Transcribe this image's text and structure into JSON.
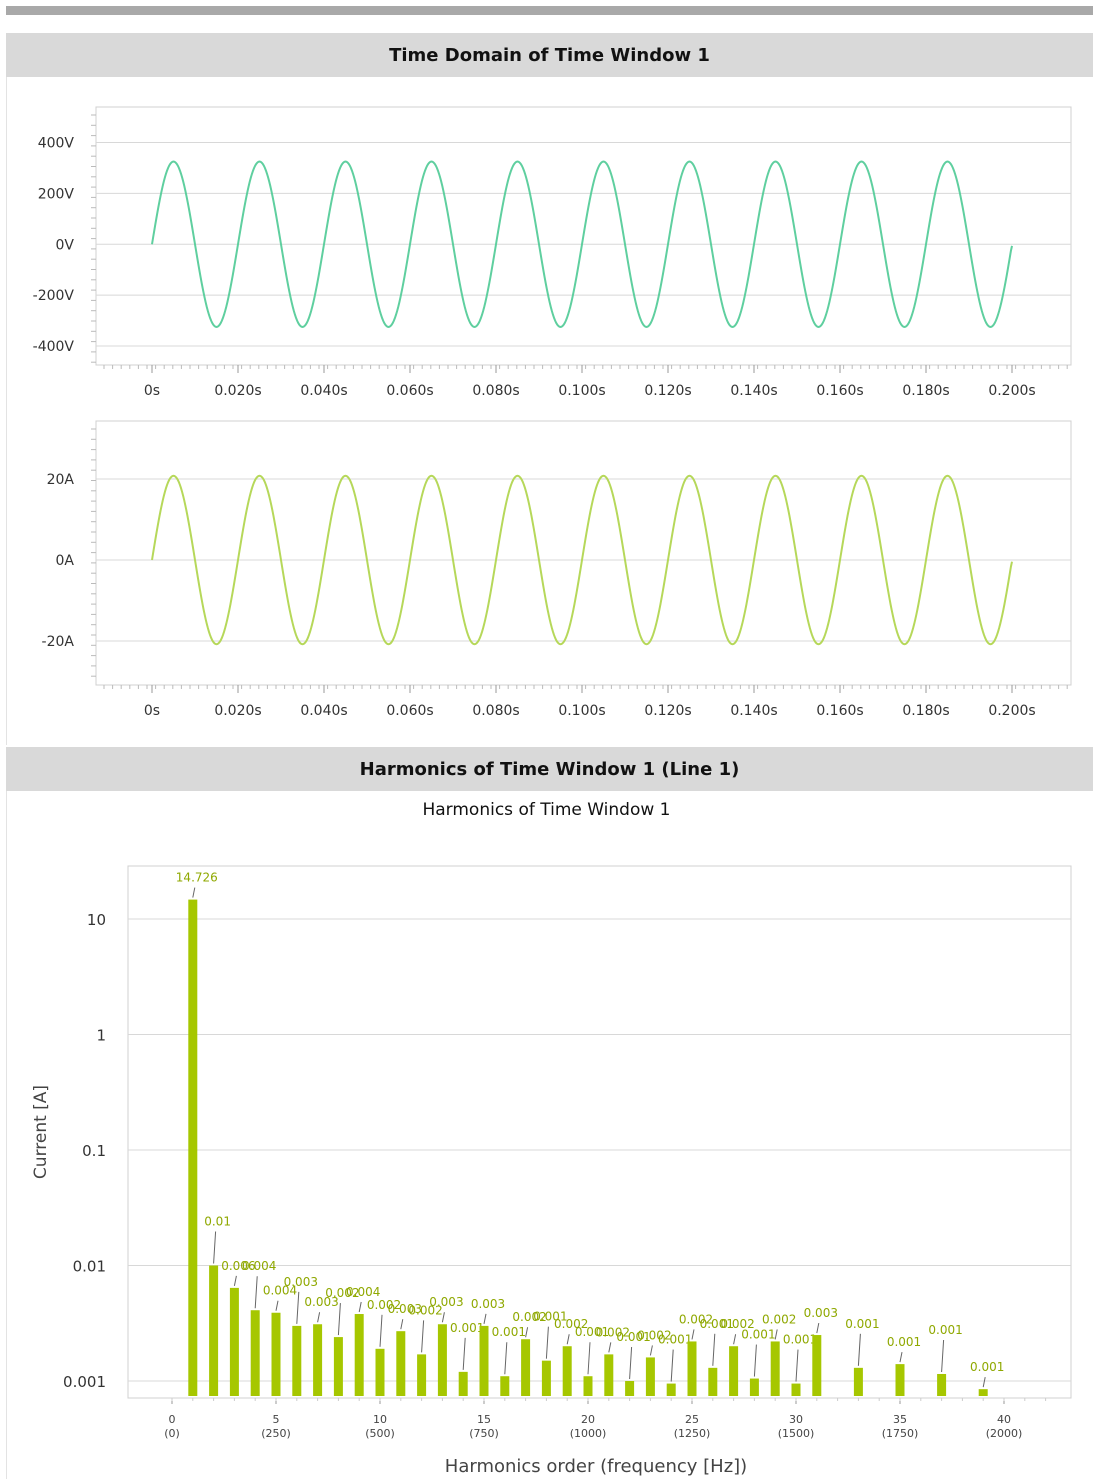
{
  "header_time": "Time Domain of Time Window 1",
  "header_harm": "Harmonics of Time Window 1 (Line 1)",
  "colors": {
    "voltage": "#5fcf9f",
    "current": "#b6d85a",
    "bar": "#a6c700",
    "label": "#8fa800",
    "grid": "#d8d8d8",
    "header_bg": "#d9d9d9"
  },
  "chart_data": [
    {
      "type": "line",
      "signal": "voltage",
      "x_ticks": [
        "0s",
        "0.020s",
        "0.040s",
        "0.060s",
        "0.080s",
        "0.100s",
        "0.120s",
        "0.140s",
        "0.160s",
        "0.180s",
        "0.200s"
      ],
      "y_ticks": [
        "400V",
        "200V",
        "0V",
        "-200V",
        "-400V"
      ],
      "xlim": [
        0,
        0.2
      ],
      "ylim": [
        -400,
        400
      ],
      "waveform": {
        "shape": "sine",
        "amplitude": 325,
        "frequency_hz": 50,
        "t_start": 0,
        "t_end": 0.2
      },
      "grid": true
    },
    {
      "type": "line",
      "signal": "current",
      "x_ticks": [
        "0s",
        "0.020s",
        "0.040s",
        "0.060s",
        "0.080s",
        "0.100s",
        "0.120s",
        "0.140s",
        "0.160s",
        "0.180s",
        "0.200s"
      ],
      "y_ticks": [
        "20A",
        "0A",
        "-20A"
      ],
      "xlim": [
        0,
        0.2
      ],
      "ylim": [
        -20,
        20
      ],
      "waveform": {
        "shape": "sine",
        "amplitude": 20.8,
        "frequency_hz": 50,
        "t_start": 0,
        "t_end": 0.2
      },
      "grid": true
    },
    {
      "type": "bar",
      "title": "Harmonics of Time Window 1",
      "xlabel": "Harmonics order (frequency [Hz])",
      "ylabel": "Current [A]",
      "y_scale": "log",
      "ylim": [
        0.0005,
        30
      ],
      "xlim": [
        -2,
        44
      ],
      "y_ticks": [
        {
          "v": 10,
          "label": "10"
        },
        {
          "v": 1,
          "label": "1"
        },
        {
          "v": 0.1,
          "label": "0.1"
        },
        {
          "v": 0.01,
          "label": "0.01"
        },
        {
          "v": 0.001,
          "label": "0.001"
        }
      ],
      "x_ticks": [
        {
          "v": 0,
          "top": "0",
          "bottom": "(0)"
        },
        {
          "v": 5,
          "top": "5",
          "bottom": "(250)"
        },
        {
          "v": 10,
          "top": "10",
          "bottom": "(500)"
        },
        {
          "v": 15,
          "top": "15",
          "bottom": "(750)"
        },
        {
          "v": 20,
          "top": "20",
          "bottom": "(1000)"
        },
        {
          "v": 25,
          "top": "25",
          "bottom": "(1250)"
        },
        {
          "v": 30,
          "top": "30",
          "bottom": "(1500)"
        },
        {
          "v": 35,
          "top": "35",
          "bottom": "(1750)"
        },
        {
          "v": 40,
          "top": "40",
          "bottom": "(2000)"
        }
      ],
      "bars": [
        {
          "h": 1,
          "v": 14.726,
          "label": "14.726"
        },
        {
          "h": 2,
          "v": 0.01,
          "label": "0.01"
        },
        {
          "h": 3,
          "v": 0.0064,
          "label": "0.006"
        },
        {
          "h": 4,
          "v": 0.0041,
          "label": "0.004"
        },
        {
          "h": 5,
          "v": 0.0039,
          "label": "0.004"
        },
        {
          "h": 6,
          "v": 0.003,
          "label": "0.003"
        },
        {
          "h": 7,
          "v": 0.0031,
          "label": "0.003"
        },
        {
          "h": 8,
          "v": 0.0024,
          "label": "0.002"
        },
        {
          "h": 9,
          "v": 0.0038,
          "label": "0.004"
        },
        {
          "h": 10,
          "v": 0.0019,
          "label": "0.002"
        },
        {
          "h": 11,
          "v": 0.0027,
          "label": "0.003"
        },
        {
          "h": 12,
          "v": 0.0017,
          "label": "0.002"
        },
        {
          "h": 13,
          "v": 0.0031,
          "label": "0.003"
        },
        {
          "h": 14,
          "v": 0.0012,
          "label": "0.001"
        },
        {
          "h": 15,
          "v": 0.003,
          "label": "0.003"
        },
        {
          "h": 16,
          "v": 0.0011,
          "label": "0.001"
        },
        {
          "h": 17,
          "v": 0.0023,
          "label": "0.002"
        },
        {
          "h": 18,
          "v": 0.0015,
          "label": "0.001"
        },
        {
          "h": 19,
          "v": 0.002,
          "label": "0.002"
        },
        {
          "h": 20,
          "v": 0.0011,
          "label": "0.001"
        },
        {
          "h": 21,
          "v": 0.0017,
          "label": "0.002"
        },
        {
          "h": 22,
          "v": 0.001,
          "label": "0.001"
        },
        {
          "h": 23,
          "v": 0.0016,
          "label": "0.002"
        },
        {
          "h": 24,
          "v": 0.00095,
          "label": "0.001"
        },
        {
          "h": 25,
          "v": 0.0022,
          "label": "0.002"
        },
        {
          "h": 26,
          "v": 0.0013,
          "label": "0.001"
        },
        {
          "h": 27,
          "v": 0.002,
          "label": "0.002"
        },
        {
          "h": 28,
          "v": 0.00105,
          "label": "0.001"
        },
        {
          "h": 29,
          "v": 0.0022,
          "label": "0.002"
        },
        {
          "h": 30,
          "v": 0.00095,
          "label": "0.001"
        },
        {
          "h": 31,
          "v": 0.0025,
          "label": "0.003"
        },
        {
          "h": 33,
          "v": 0.0013,
          "label": "0.001"
        },
        {
          "h": 35,
          "v": 0.0014,
          "label": "0.001"
        },
        {
          "h": 37,
          "v": 0.00115,
          "label": "0.001"
        },
        {
          "h": 39,
          "v": 0.00085,
          "label": "0.001"
        }
      ]
    }
  ]
}
